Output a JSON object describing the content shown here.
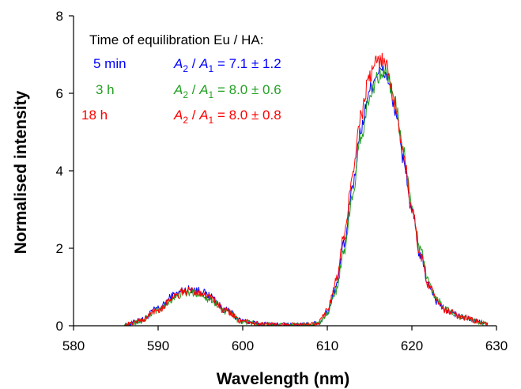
{
  "chart_data": {
    "type": "line",
    "title": "",
    "xlabel": "Wavelength (nm)",
    "ylabel": "Normalised intensity",
    "xlim": [
      580,
      630
    ],
    "ylim": [
      0,
      8
    ],
    "x_ticks": [
      "580",
      "590",
      "600",
      "610",
      "620",
      "630"
    ],
    "y_ticks": [
      "0",
      "2",
      "4",
      "6",
      "8"
    ],
    "grid": false,
    "legend_placement": "top-left",
    "legend_header": "Time of equilibration Eu / HA:",
    "series": [
      {
        "name": "5 min",
        "color": "#0000ff",
        "ratio_label": {
          "a2": "A",
          "sub2": "2",
          "slash": " / ",
          "a1": "A",
          "sub1": "1",
          "value": " = 7.1 ± 1.2"
        },
        "x": [
          586,
          588,
          590,
          592,
          593,
          594,
          595,
          596,
          598,
          600,
          602,
          604,
          606,
          608,
          609,
          610,
          611,
          612,
          613,
          614,
          615,
          616,
          616.5,
          617,
          618,
          619,
          620,
          621,
          622,
          623,
          624,
          626,
          628,
          629
        ],
        "y": [
          0.0,
          0.15,
          0.45,
          0.8,
          0.92,
          0.95,
          0.9,
          0.78,
          0.4,
          0.12,
          0.05,
          0.03,
          0.02,
          0.03,
          0.08,
          0.35,
          1.0,
          2.1,
          3.6,
          5.1,
          6.1,
          6.55,
          6.6,
          6.45,
          5.6,
          4.3,
          2.95,
          1.8,
          1.05,
          0.62,
          0.4,
          0.22,
          0.1,
          0.03
        ]
      },
      {
        "name": "3 h",
        "color": "#22a022",
        "ratio_label": {
          "a2": "A",
          "sub2": "2",
          "slash": " / ",
          "a1": "A",
          "sub1": "1",
          "value": " = 8.0 ± 0.6"
        },
        "x": [
          586,
          588,
          590,
          592,
          593,
          594,
          595,
          596,
          598,
          600,
          602,
          604,
          606,
          608,
          609,
          610,
          611,
          612,
          613,
          614,
          615,
          616,
          616.5,
          617,
          618,
          619,
          620,
          621,
          622,
          623,
          624,
          626,
          628,
          629
        ],
        "y": [
          0.0,
          0.12,
          0.4,
          0.72,
          0.84,
          0.86,
          0.82,
          0.7,
          0.36,
          0.1,
          0.05,
          0.03,
          0.02,
          0.03,
          0.07,
          0.3,
          0.9,
          1.95,
          3.4,
          4.9,
          5.9,
          6.45,
          6.6,
          6.5,
          5.75,
          4.5,
          3.15,
          1.95,
          1.15,
          0.68,
          0.42,
          0.22,
          0.1,
          0.03
        ]
      },
      {
        "name": "18 h",
        "color": "#ff0000",
        "ratio_label": {
          "a2": "A",
          "sub2": "2",
          "slash": " / ",
          "a1": "A",
          "sub1": "1",
          "value": " = 8.0 ± 0.8"
        },
        "x": [
          586,
          588,
          590,
          592,
          593,
          594,
          595,
          596,
          598,
          600,
          602,
          604,
          606,
          608,
          609,
          610,
          611,
          612,
          613,
          614,
          615,
          616,
          616.5,
          617,
          618,
          619,
          620,
          621,
          622,
          623,
          624,
          626,
          628,
          629
        ],
        "y": [
          0.02,
          0.14,
          0.42,
          0.76,
          0.88,
          0.9,
          0.86,
          0.74,
          0.38,
          0.11,
          0.05,
          0.03,
          0.02,
          0.03,
          0.1,
          0.4,
          1.15,
          2.35,
          3.9,
          5.45,
          6.45,
          6.85,
          6.9,
          6.7,
          5.75,
          4.4,
          3.0,
          1.82,
          1.05,
          0.62,
          0.4,
          0.22,
          0.1,
          0.03
        ]
      }
    ]
  }
}
